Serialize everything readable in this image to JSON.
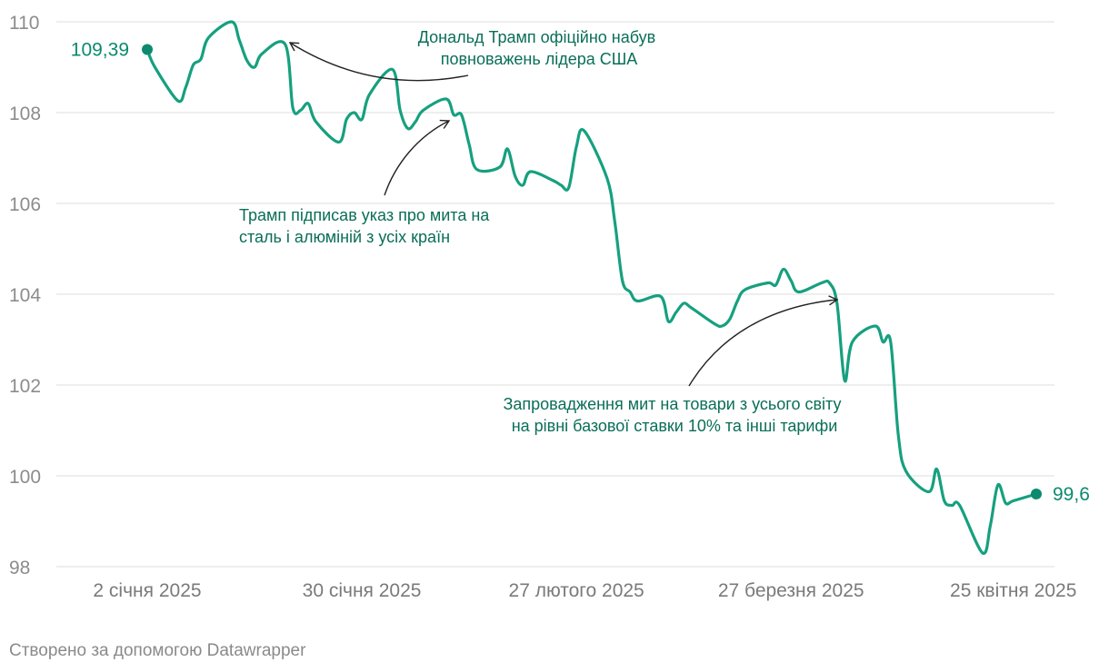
{
  "chart_data": {
    "type": "line",
    "y_range": [
      98,
      110
    ],
    "y_ticks": [
      98,
      100,
      102,
      104,
      106,
      108,
      110
    ],
    "x_ticks": [
      "2 січня 2025",
      "30 січня 2025",
      "27 лютого 2025",
      "27 березня 2025",
      "25 квітня 2025"
    ],
    "grid": true,
    "series": [
      {
        "color": "#16a07f",
        "points": [
          [
            "2025-01-02",
            109.39
          ],
          [
            "2025-01-03",
            109.0
          ],
          [
            "2025-01-06",
            108.26
          ],
          [
            "2025-01-07",
            108.55
          ],
          [
            "2025-01-08",
            109.05
          ],
          [
            "2025-01-09",
            109.18
          ],
          [
            "2025-01-10",
            109.65
          ],
          [
            "2025-01-13",
            110.0
          ],
          [
            "2025-01-14",
            109.6
          ],
          [
            "2025-01-15",
            109.15
          ],
          [
            "2025-01-16",
            109.0
          ],
          [
            "2025-01-17",
            109.3
          ],
          [
            "2025-01-20",
            109.5
          ],
          [
            "2025-01-21",
            108.1
          ],
          [
            "2025-01-22",
            108.05
          ],
          [
            "2025-01-23",
            108.2
          ],
          [
            "2025-01-24",
            107.8
          ],
          [
            "2025-01-27",
            107.35
          ],
          [
            "2025-01-28",
            107.85
          ],
          [
            "2025-01-29",
            108.0
          ],
          [
            "2025-01-30",
            107.85
          ],
          [
            "2025-01-31",
            108.4
          ],
          [
            "2025-02-03",
            108.95
          ],
          [
            "2025-02-04",
            108.05
          ],
          [
            "2025-02-05",
            107.65
          ],
          [
            "2025-02-06",
            107.8
          ],
          [
            "2025-02-07",
            108.05
          ],
          [
            "2025-02-10",
            108.3
          ],
          [
            "2025-02-11",
            107.95
          ],
          [
            "2025-02-12",
            107.95
          ],
          [
            "2025-02-13",
            107.3
          ],
          [
            "2025-02-14",
            106.75
          ],
          [
            "2025-02-17",
            106.8
          ],
          [
            "2025-02-18",
            107.2
          ],
          [
            "2025-02-19",
            106.6
          ],
          [
            "2025-02-20",
            106.4
          ],
          [
            "2025-02-21",
            106.7
          ],
          [
            "2025-02-24",
            106.5
          ],
          [
            "2025-02-25",
            106.4
          ],
          [
            "2025-02-26",
            106.35
          ],
          [
            "2025-02-27",
            107.25
          ],
          [
            "2025-02-28",
            107.6
          ],
          [
            "2025-03-03",
            106.55
          ],
          [
            "2025-03-04",
            105.6
          ],
          [
            "2025-03-05",
            104.3
          ],
          [
            "2025-03-06",
            104.05
          ],
          [
            "2025-03-07",
            103.85
          ],
          [
            "2025-03-10",
            103.95
          ],
          [
            "2025-03-11",
            103.4
          ],
          [
            "2025-03-12",
            103.6
          ],
          [
            "2025-03-13",
            103.8
          ],
          [
            "2025-03-14",
            103.7
          ],
          [
            "2025-03-17",
            103.35
          ],
          [
            "2025-03-18",
            103.3
          ],
          [
            "2025-03-19",
            103.45
          ],
          [
            "2025-03-20",
            103.85
          ],
          [
            "2025-03-21",
            104.1
          ],
          [
            "2025-03-24",
            104.25
          ],
          [
            "2025-03-25",
            104.2
          ],
          [
            "2025-03-26",
            104.55
          ],
          [
            "2025-03-27",
            104.3
          ],
          [
            "2025-03-28",
            104.05
          ],
          [
            "2025-03-31",
            104.25
          ],
          [
            "2025-04-01",
            104.25
          ],
          [
            "2025-04-02",
            103.8
          ],
          [
            "2025-04-03",
            102.1
          ],
          [
            "2025-04-04",
            102.95
          ],
          [
            "2025-04-07",
            103.3
          ],
          [
            "2025-04-08",
            102.95
          ],
          [
            "2025-04-09",
            102.95
          ],
          [
            "2025-04-10",
            100.9
          ],
          [
            "2025-04-11",
            100.1
          ],
          [
            "2025-04-14",
            99.65
          ],
          [
            "2025-04-15",
            100.15
          ],
          [
            "2025-04-16",
            99.45
          ],
          [
            "2025-04-17",
            99.35
          ],
          [
            "2025-04-18",
            99.35
          ],
          [
            "2025-04-21",
            98.3
          ],
          [
            "2025-04-22",
            98.9
          ],
          [
            "2025-04-23",
            99.8
          ],
          [
            "2025-04-24",
            99.4
          ],
          [
            "2025-04-25",
            99.45
          ],
          [
            "2025-04-28",
            99.6
          ]
        ]
      }
    ],
    "start_label": "109,39",
    "end_label": "99,6",
    "annotations": [
      {
        "lines": [
          "Дональд Трамп офіційно набув",
          "повноважень лідера США"
        ]
      },
      {
        "lines": [
          "Трамп підписав указ про мита на",
          "сталь і алюміній з усіх країн"
        ]
      },
      {
        "lines": [
          "Запровадження мит на товари з усього світу",
          "на рівні базової ставки 10% та інші тарифи"
        ]
      }
    ]
  },
  "footer": {
    "credit": "Створено за допомогою Datawrapper"
  }
}
